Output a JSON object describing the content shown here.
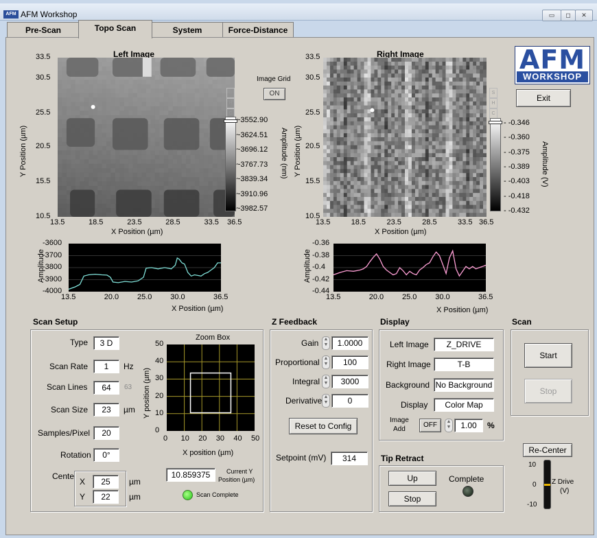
{
  "window": {
    "title": "AFM Workshop",
    "app_icon": "AFM",
    "min": "▭",
    "max": "◻",
    "close": "✕"
  },
  "tabs": [
    {
      "label": "Pre-Scan",
      "active": false
    },
    {
      "label": "Topo Scan",
      "active": true
    },
    {
      "label": "System",
      "active": false
    },
    {
      "label": "Force-Distance",
      "active": false
    }
  ],
  "logo": {
    "top": "AFM",
    "bottom": "WORKSHOP"
  },
  "exit_label": "Exit",
  "image_grid": {
    "label": "Image Grid",
    "value": "ON"
  },
  "shc": [
    "S",
    "H",
    "C"
  ],
  "left_image": {
    "title": "Left Image",
    "ylabel": "Y Position (µm)",
    "xlabel": "X Position (µm)",
    "yticks": [
      "33.5",
      "30.5",
      "25.5",
      "20.5",
      "15.5",
      "10.5"
    ],
    "xticks": [
      "13.5",
      "18.5",
      "23.5",
      "28.5",
      "33.5",
      "36.5"
    ],
    "colorbar_title": "Amplitude (nm)",
    "colorbar_ticks": [
      "3552.90",
      "3624.51",
      "3696.12",
      "3767.73",
      "3839.34",
      "3910.96",
      "3982.57"
    ]
  },
  "right_image": {
    "title": "Right Image",
    "ylabel": "Y Position (µm)",
    "xlabel": "X Position (µm)",
    "yticks": [
      "33.5",
      "30.5",
      "25.5",
      "20.5",
      "15.5",
      "10.5"
    ],
    "xticks": [
      "13.5",
      "18.5",
      "23.5",
      "28.5",
      "33.5",
      "36.5"
    ],
    "colorbar_title": "Amplitude (V)",
    "colorbar_ticks": [
      "-0.346",
      "-0.360",
      "-0.375",
      "-0.389",
      "-0.403",
      "-0.418",
      "-0.432"
    ]
  },
  "chart_data": [
    {
      "type": "line",
      "ylabel": "Amplitude",
      "xlabel": "X Position (µm)",
      "xlim": [
        13.5,
        36.5
      ],
      "ylim": [
        -4000,
        -3600
      ],
      "xticks": [
        "13.5",
        "20.0",
        "25.0",
        "30.0",
        "36.5"
      ],
      "yticks": [
        "-3600",
        "-3700",
        "-3800",
        "-3900",
        "-4000"
      ],
      "color": "#7fe0d8",
      "x": [
        13.5,
        14.5,
        15.2,
        15.8,
        16.5,
        17.5,
        18.5,
        19.3,
        19.8,
        20.2,
        21.0,
        22.0,
        23.0,
        24.0,
        24.8,
        25.2,
        26.0,
        27.0,
        28.0,
        28.5,
        29.0,
        29.6,
        29.9,
        30.2,
        30.6,
        31.0,
        31.5,
        32.0,
        32.5,
        33.0,
        33.5,
        34.0,
        34.5,
        35.0,
        35.5,
        36.0,
        36.5
      ],
      "y": [
        -3980,
        -3960,
        -3940,
        -3870,
        -3860,
        -3855,
        -3860,
        -3862,
        -3880,
        -3920,
        -3925,
        -3915,
        -3920,
        -3910,
        -3880,
        -3805,
        -3800,
        -3810,
        -3800,
        -3805,
        -3810,
        -3780,
        -3720,
        -3730,
        -3760,
        -3770,
        -3840,
        -3870,
        -3860,
        -3865,
        -3870,
        -3850,
        -3840,
        -3820,
        -3800,
        -3760,
        -3760
      ]
    },
    {
      "type": "line",
      "ylabel": "Amplitude",
      "xlabel": "X Position (µm)",
      "xlim": [
        13.5,
        36.5
      ],
      "ylim": [
        -0.44,
        -0.36
      ],
      "xticks": [
        "13.5",
        "20.0",
        "25.0",
        "30.0",
        "36.5"
      ],
      "yticks": [
        "-0.36",
        "-0.38",
        "-0.4",
        "-0.42",
        "-0.44"
      ],
      "color": "#ff9fd6",
      "x": [
        13.5,
        14.5,
        15.5,
        16.5,
        17.5,
        18.0,
        18.5,
        19.0,
        19.5,
        20.0,
        20.5,
        21.0,
        21.5,
        22.0,
        22.5,
        23.0,
        23.5,
        24.0,
        24.5,
        25.0,
        25.5,
        26.0,
        26.5,
        27.0,
        27.5,
        28.0,
        28.5,
        29.0,
        29.5,
        30.0,
        30.5,
        31.0,
        31.5,
        32.0,
        32.5,
        33.0,
        33.5,
        34.0,
        34.5,
        35.0,
        35.5,
        36.0,
        36.5
      ],
      "y": [
        -0.412,
        -0.408,
        -0.405,
        -0.406,
        -0.404,
        -0.402,
        -0.398,
        -0.39,
        -0.383,
        -0.377,
        -0.386,
        -0.398,
        -0.404,
        -0.408,
        -0.412,
        -0.41,
        -0.4,
        -0.405,
        -0.412,
        -0.406,
        -0.41,
        -0.412,
        -0.404,
        -0.4,
        -0.395,
        -0.392,
        -0.382,
        -0.374,
        -0.38,
        -0.395,
        -0.41,
        -0.384,
        -0.372,
        -0.402,
        -0.414,
        -0.406,
        -0.398,
        -0.402,
        -0.398,
        -0.402,
        -0.4,
        -0.398,
        -0.396
      ]
    },
    {
      "type": "scatter",
      "title": "Zoom Box",
      "xlabel": "X position (µm)",
      "ylabel": "Y position (µm)",
      "xlim": [
        0,
        50
      ],
      "ylim": [
        0,
        50
      ],
      "xticks": [
        "0",
        "10",
        "20",
        "30",
        "40",
        "50"
      ],
      "yticks": [
        "50",
        "40",
        "30",
        "20",
        "10",
        "0"
      ],
      "grid": true,
      "box": {
        "x": [
          13.5,
          36.5
        ],
        "y": [
          10.5,
          33.5
        ]
      }
    }
  ],
  "scan_setup": {
    "title": "Scan Setup",
    "type_label": "Type",
    "type_value": "3 D",
    "rate_label": "Scan Rate",
    "rate_value": "1",
    "rate_unit": "Hz",
    "lines_label": "Scan Lines",
    "lines_value": "64",
    "lines_hint": "63",
    "size_label": "Scan Size",
    "size_value": "23",
    "size_unit": "µm",
    "samples_label": "Samples/Pixel",
    "samples_value": "20",
    "rotation_label": "Rotation",
    "rotation_value": "0°",
    "center_label": "Center",
    "x_label": "X",
    "x_value": "25",
    "x_unit": "µm",
    "y_label": "Y",
    "y_value": "22",
    "y_unit": "µm",
    "current_y_value": "10.859375",
    "current_y_label1": "Current Y",
    "current_y_label2": "Position (µm)",
    "scan_complete": "Scan Complete"
  },
  "z_feedback": {
    "title": "Z Feedback",
    "gain_label": "Gain",
    "gain_value": "1.0000",
    "prop_label": "Proportional",
    "prop_value": "100",
    "int_label": "Integral",
    "int_value": "3000",
    "deriv_label": "Derivative",
    "deriv_value": "0",
    "reset_label": "Reset to Config",
    "setpoint_label": "Setpoint (mV)",
    "setpoint_value": "314"
  },
  "display": {
    "title": "Display",
    "left_label": "Left Image",
    "left_value": "Z_DRIVE",
    "right_label": "Right Image",
    "right_value": "T-B",
    "bg_label": "Background",
    "bg_value": "No Background",
    "disp_label": "Display",
    "disp_value": "Color Map",
    "add_label1": "Image",
    "add_label2": "Add",
    "add_toggle": "OFF",
    "add_value": "1.00",
    "add_unit": "%"
  },
  "scan": {
    "title": "Scan",
    "start": "Start",
    "stop": "Stop"
  },
  "tip_retract": {
    "title": "Tip Retract",
    "up": "Up",
    "stop": "Stop",
    "status": "Complete"
  },
  "recenter": "Re-Center",
  "zdrive": {
    "label1": "Z Drive",
    "label2": "(V)",
    "ticks": [
      "10",
      "0",
      "-10"
    ],
    "value": 0
  }
}
